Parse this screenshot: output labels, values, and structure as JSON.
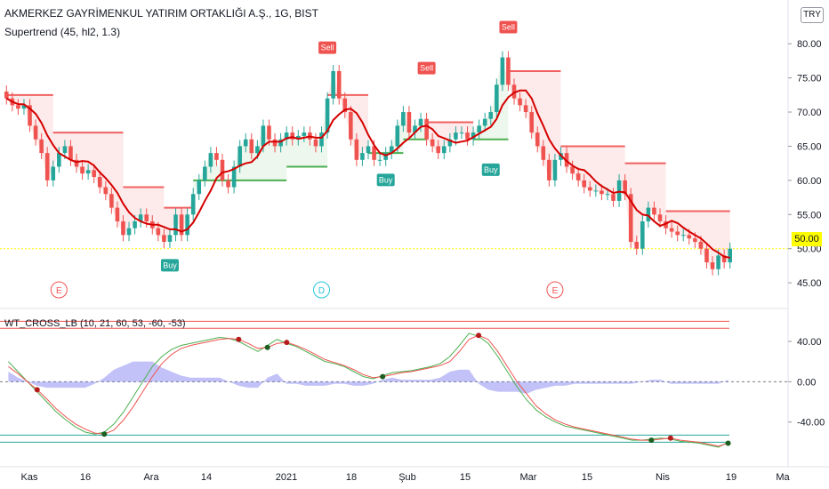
{
  "header": {
    "symbol_title": "AKMERKEZ GAYRİMENKUL YATIRIM ORTAKLIĞI A.Ş., 1G, BIST",
    "currency": "TRY",
    "indicator_main": "Supertrend (45, hl2, 1.3)",
    "indicator_sub": "WT_CROSS_LB (10, 21, 60, 53, -60, -53)",
    "last_price_label": "50.00"
  },
  "colors": {
    "up": "#26a69a",
    "down": "#ef5350",
    "highlight": "#ffff00",
    "supertrend_up": "#4caf50",
    "supertrend_down": "#f06060",
    "ma": "#d50000",
    "ma_green": "#1b7a1b",
    "wt1": "#4caf50",
    "wt2": "#ef5350",
    "wt_hist": "#9c9cf0"
  },
  "chart_data": [
    {
      "type": "candlestick",
      "title": "AKMERKEZ GAYRİMENKUL YATIRIM ORTAKLIĞI A.Ş., 1G, BIST",
      "y_ticks": [
        45.0,
        50.0,
        55.0,
        60.0,
        65.0,
        70.0,
        75.0,
        80.0
      ],
      "y_tick_labels": [
        "45.00",
        "50.00",
        "55.00",
        "60.00",
        "65.00",
        "70.00",
        "75.00",
        "80.00"
      ],
      "ylim": [
        41.5,
        82.5
      ],
      "x_ticks": [
        "Kas",
        "16",
        "Ara",
        "14",
        "2021",
        "18",
        "Şub",
        "15",
        "Mar",
        "15",
        "Nis",
        "19",
        "Ma"
      ],
      "closes": [
        72,
        71,
        70.5,
        71,
        68,
        66,
        64,
        60,
        62,
        64,
        65,
        63,
        62,
        61,
        61.5,
        60.5,
        59,
        58,
        56,
        54,
        52,
        53,
        54,
        55,
        54,
        53,
        52,
        51,
        52,
        55,
        52,
        55,
        58,
        60,
        62,
        64,
        63,
        60,
        59,
        62,
        65,
        66,
        64,
        65,
        68,
        66,
        65,
        66,
        67,
        66,
        66.5,
        67,
        66,
        65,
        67,
        72,
        76,
        72,
        70,
        66,
        63,
        64,
        65,
        63,
        63,
        64,
        65,
        68,
        70,
        67,
        68,
        69,
        66,
        65,
        64,
        65,
        66,
        67,
        67,
        66,
        67,
        68,
        69,
        70,
        74,
        78,
        74,
        72,
        71,
        70,
        67,
        65,
        63,
        60,
        63,
        64,
        62,
        61,
        60,
        59,
        58.5,
        58.5,
        58,
        58,
        57,
        60,
        58,
        51,
        50,
        54,
        56,
        55,
        54,
        53,
        52.5,
        52,
        52,
        51.5,
        51,
        50,
        48,
        47,
        49,
        48,
        50
      ],
      "supertrend_levels": [
        {
          "from": 0,
          "to": 8,
          "value": 72.5,
          "dir": "down"
        },
        {
          "from": 8,
          "to": 20,
          "value": 67,
          "dir": "down"
        },
        {
          "from": 20,
          "to": 27,
          "value": 59,
          "dir": "down"
        },
        {
          "from": 27,
          "to": 32,
          "value": 56,
          "dir": "down"
        },
        {
          "from": 32,
          "to": 48,
          "value": 60,
          "dir": "up"
        },
        {
          "from": 48,
          "to": 55,
          "value": 62,
          "dir": "up"
        },
        {
          "from": 55,
          "to": 62,
          "value": 72.5,
          "dir": "down"
        },
        {
          "from": 62,
          "to": 68,
          "value": 64,
          "dir": "up"
        },
        {
          "from": 68,
          "to": 72,
          "value": 66,
          "dir": "up"
        },
        {
          "from": 72,
          "to": 80,
          "value": 68.5,
          "dir": "down"
        },
        {
          "from": 80,
          "to": 86,
          "value": 66,
          "dir": "up"
        },
        {
          "from": 86,
          "to": 95,
          "value": 76,
          "dir": "down"
        },
        {
          "from": 95,
          "to": 106,
          "value": 65,
          "dir": "down"
        },
        {
          "from": 106,
          "to": 113,
          "value": 62.5,
          "dir": "down"
        },
        {
          "from": 113,
          "to": 124,
          "value": 55.5,
          "dir": "down"
        },
        {
          "from": 124,
          "to": 129,
          "value": 51,
          "dir": "down"
        }
      ],
      "signals": [
        {
          "label": "Sell",
          "index": 55,
          "price": 78
        },
        {
          "label": "Sell",
          "index": 72,
          "price": 75
        },
        {
          "label": "Sell",
          "index": 86,
          "price": 81
        },
        {
          "label": "Buy",
          "index": 28,
          "price": 49
        },
        {
          "label": "Buy",
          "index": 65,
          "price": 61.5
        },
        {
          "label": "Buy",
          "index": 83,
          "price": 63
        }
      ],
      "events": [
        {
          "label": "E",
          "index": 9
        },
        {
          "label": "D",
          "index": 54
        },
        {
          "label": "E",
          "index": 94
        }
      ],
      "last_price": 50.0
    },
    {
      "type": "line",
      "title": "WT_CROSS_LB (10, 21, 60, 53, -60, -53)",
      "y_ticks": [
        40.0,
        0.0,
        -40.0
      ],
      "y_tick_labels": [
        "40.00",
        "0.00",
        "-40.00"
      ],
      "ylim": [
        -80,
        70
      ],
      "levels": [
        60,
        53,
        -53,
        -60
      ],
      "series": [
        {
          "name": "wt1",
          "values": [
            20,
            10,
            0,
            -10,
            -20,
            -30,
            -38,
            -45,
            -50,
            -52,
            -50,
            -42,
            -30,
            -15,
            0,
            15,
            25,
            32,
            36,
            38,
            40,
            42,
            44,
            43,
            40,
            35,
            30,
            36,
            42,
            38,
            35,
            30,
            25,
            20,
            18,
            15,
            10,
            5,
            3,
            6,
            9,
            10,
            11,
            13,
            15,
            18,
            25,
            36,
            48,
            45,
            38,
            25,
            10,
            -5,
            -18,
            -28,
            -35,
            -40,
            -44,
            -46,
            -48,
            -50,
            -52,
            -54,
            -56,
            -58,
            -58,
            -57,
            -56,
            -57,
            -59,
            -60,
            -61,
            -63,
            -65,
            -60
          ]
        },
        {
          "name": "wt2",
          "values": [
            15,
            8,
            0,
            -8,
            -17,
            -27,
            -35,
            -42,
            -47,
            -51,
            -52,
            -48,
            -38,
            -25,
            -10,
            5,
            18,
            27,
            33,
            36,
            38,
            40,
            42,
            43,
            42,
            38,
            33,
            34,
            38,
            39,
            36,
            32,
            27,
            22,
            19,
            16,
            12,
            7,
            4,
            5,
            7,
            9,
            10,
            12,
            14,
            16,
            20,
            30,
            42,
            46,
            42,
            30,
            15,
            0,
            -12,
            -24,
            -32,
            -38,
            -42,
            -45,
            -47,
            -49,
            -51,
            -53,
            -55,
            -57,
            -58,
            -58,
            -57,
            -56,
            -58,
            -59,
            -60,
            -62,
            -64,
            -61
          ]
        },
        {
          "name": "histogram",
          "values": [
            5,
            2,
            0,
            -2,
            -3,
            -3,
            -3,
            -3,
            -3,
            -1,
            2,
            6,
            8,
            10,
            10,
            10,
            7,
            5,
            3,
            2,
            2,
            2,
            2,
            0,
            -2,
            -3,
            -3,
            2,
            4,
            -1,
            -1,
            -2,
            -2,
            -2,
            -1,
            -1,
            -2,
            -2,
            -1,
            1,
            2,
            1,
            1,
            1,
            1,
            2,
            5,
            6,
            6,
            -1,
            -4,
            -5,
            -5,
            -5,
            -6,
            -4,
            -3,
            -2,
            -2,
            -1,
            -1,
            -1,
            -1,
            -1,
            -1,
            -1,
            0,
            1,
            1,
            -1,
            -1,
            -1,
            -1,
            -1,
            -1,
            1
          ]
        }
      ]
    }
  ]
}
